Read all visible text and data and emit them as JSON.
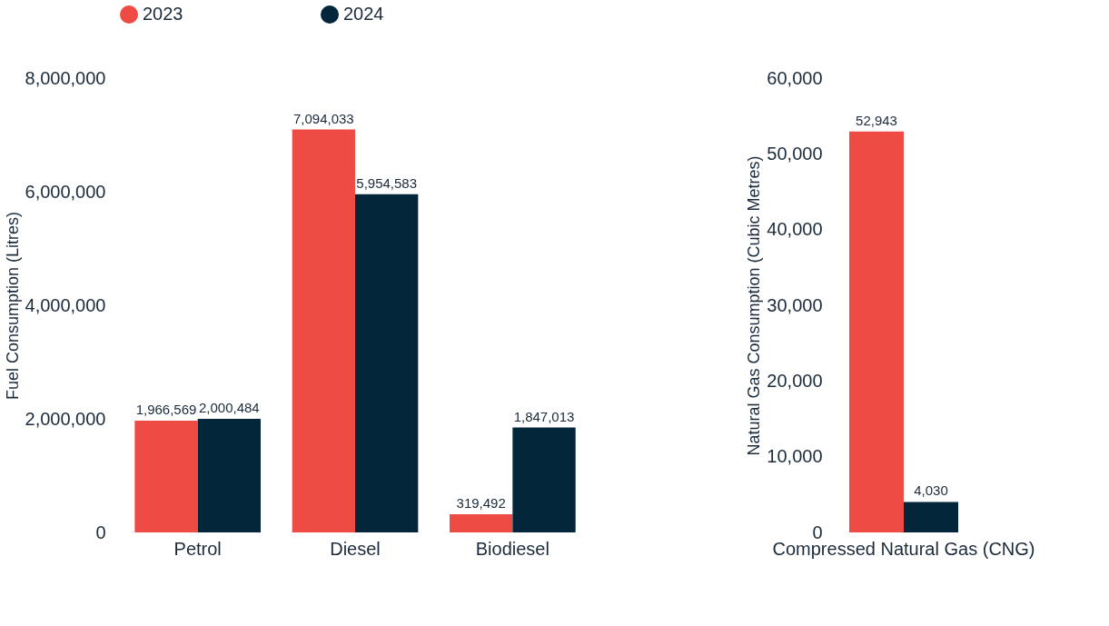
{
  "chart_data": [
    {
      "type": "bar",
      "ylabel": "Fuel Consumption (Litres)",
      "categories": [
        "Petrol",
        "Diesel",
        "Biodiesel"
      ],
      "series": [
        {
          "name": "2023",
          "color": "#ef4b45",
          "values": [
            1966569,
            7094033,
            319492
          ],
          "value_labels": [
            "1,966,569",
            "7,094,033",
            "319,492"
          ]
        },
        {
          "name": "2024",
          "color": "#03263a",
          "values": [
            2000484,
            5954583,
            1847013
          ],
          "value_labels": [
            "2,000,484",
            "5,954,583",
            "1,847,013"
          ]
        }
      ],
      "ylim": [
        0,
        8000000
      ],
      "yticks": [
        0,
        {
          "value": 2000000,
          "label": "2,000,000"
        },
        {
          "value": 4000000,
          "label": "4,000,000"
        },
        {
          "value": 6000000,
          "label": "6,000,000"
        },
        {
          "value": 8000000,
          "label": "8,000,000"
        }
      ],
      "legend": "top",
      "grid": false
    },
    {
      "type": "bar",
      "ylabel": "Natural Gas Consumption (Cubic Metres)",
      "categories": [
        "Compressed Natural Gas (CNG)"
      ],
      "series": [
        {
          "name": "2023",
          "color": "#ef4b45",
          "values": [
            52943
          ],
          "value_labels": [
            "52,943"
          ]
        },
        {
          "name": "2024",
          "color": "#03263a",
          "values": [
            4030
          ],
          "value_labels": [
            "4,030"
          ]
        }
      ],
      "ylim": [
        0,
        60000
      ],
      "yticks": [
        0,
        {
          "value": 10000,
          "label": "10,000"
        },
        {
          "value": 20000,
          "label": "20,000"
        },
        {
          "value": 30000,
          "label": "30,000"
        },
        {
          "value": 40000,
          "label": "40,000"
        },
        {
          "value": 50000,
          "label": "50,000"
        },
        {
          "value": 60000,
          "label": "60,000"
        }
      ],
      "legend": false,
      "grid": false
    }
  ]
}
